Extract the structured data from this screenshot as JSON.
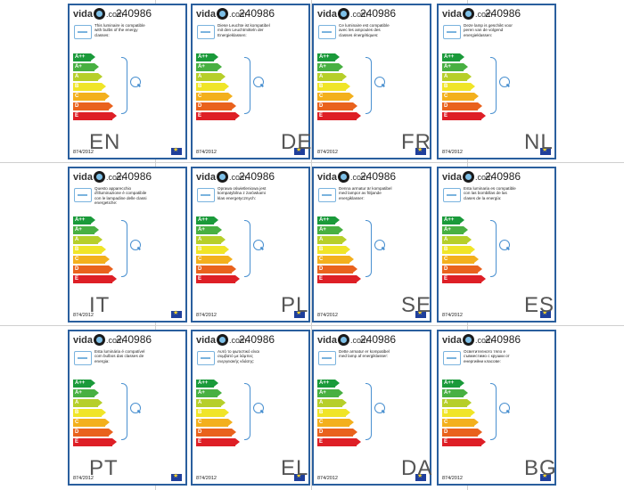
{
  "brand": {
    "prefix": "vida",
    "suffix": ".com"
  },
  "product_code": "240986",
  "regulation": "874/2012",
  "energy_classes": [
    {
      "label": "A++",
      "color": "#1a9a3a"
    },
    {
      "label": "A+",
      "color": "#48b042"
    },
    {
      "label": "A",
      "color": "#b6cf2a"
    },
    {
      "label": "B",
      "color": "#f0e528"
    },
    {
      "label": "C",
      "color": "#f3b01d"
    },
    {
      "label": "D",
      "color": "#e9621d"
    },
    {
      "label": "E",
      "color": "#de1f26"
    }
  ],
  "labels": [
    {
      "lang": "EN",
      "text": "This luminaire is compatible with bulbs of the energy classes:"
    },
    {
      "lang": "DE",
      "text": "Diese Leuchte ist kompatibel mit den Leuchtmitteln der Energieklassen:"
    },
    {
      "lang": "FR",
      "text": "Ce luminaire est compatible avec les ampoules des classes énergétiques:"
    },
    {
      "lang": "NL",
      "text": "Deze lamp is geschikt voor peren van de volgend energieklassen:"
    },
    {
      "lang": "IT",
      "text": "Questo apparecchio d'illuminazione è compatibile con le lampadine delle classi energetiche:"
    },
    {
      "lang": "PL",
      "text": "Oprawa oświetleniowa jest kompatybilna z żarówkami klas energetycznych:"
    },
    {
      "lang": "SE",
      "text": "Denna armatur är kompatibel med lampor av följande energiklasser:"
    },
    {
      "lang": "ES",
      "text": "Esta luminaria es compatible con las bombillas de las clases de la energía:"
    },
    {
      "lang": "PT",
      "text": "Esta luminária é compatível com bulbos das classes de energia:"
    },
    {
      "lang": "EL",
      "text": "Αυτό το φωτιστικό είναι συμβατό με λάμπες ενεργειακής κλάσης:"
    },
    {
      "lang": "DA",
      "text": "Dette armatur er kompatibel med lamp af energiklasser:"
    },
    {
      "lang": "BG",
      "text": "Осветителното тяло е съвместимо с крушки от енергийни класове:"
    }
  ]
}
